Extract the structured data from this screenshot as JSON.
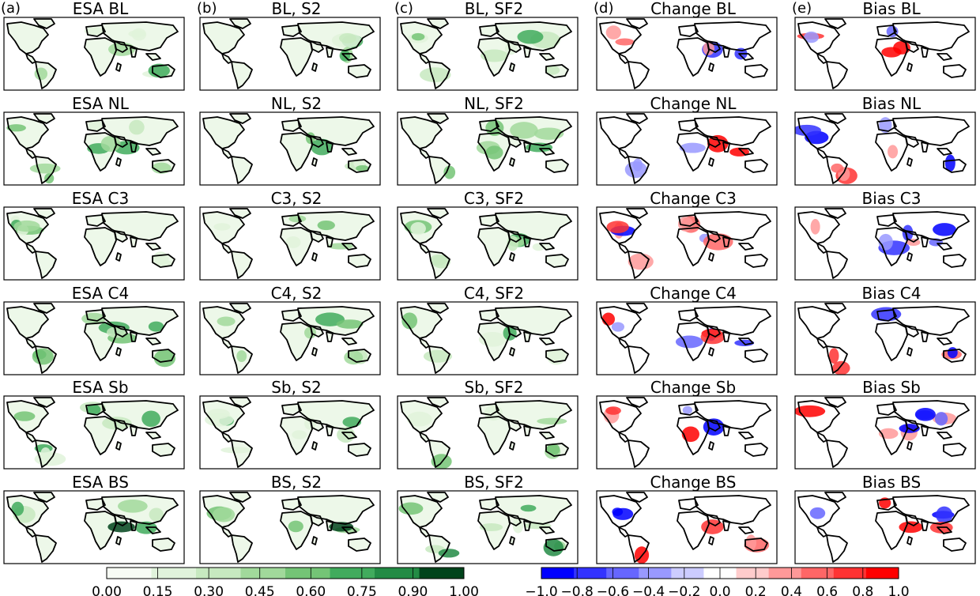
{
  "figure": {
    "columns": [
      {
        "letter": "(a)",
        "titles": [
          "ESA BL",
          "ESA NL",
          "ESA C3",
          "ESA C4",
          "ESA Sb",
          "ESA BS"
        ],
        "scale": "green"
      },
      {
        "letter": "(b)",
        "titles": [
          "BL, S2",
          "NL, S2",
          "C3, S2",
          "C4, S2",
          "Sb, S2",
          "BS, S2"
        ],
        "scale": "green"
      },
      {
        "letter": "(c)",
        "titles": [
          "BL, SF2",
          "NL, SF2",
          "C3, SF2",
          "C4, SF2",
          "Sb, SF2",
          "BS, SF2"
        ],
        "scale": "green"
      },
      {
        "letter": "(d)",
        "titles": [
          "Change BL",
          "Change NL",
          "Change C3",
          "Change C4",
          "Change Sb",
          "Change BS"
        ],
        "scale": "diverging"
      },
      {
        "letter": "(e)",
        "titles": [
          "Bias BL",
          "Bias NL",
          "Bias C3",
          "Bias C4",
          "Bias Sb",
          "Bias BS"
        ],
        "scale": "diverging"
      }
    ],
    "colorbars": {
      "green": {
        "ticks": [
          "0.00",
          "0.15",
          "0.30",
          "0.45",
          "0.60",
          "0.75",
          "0.90",
          "1.00"
        ],
        "colors": [
          "#f7fcf5",
          "#e0f3db",
          "#c7e9c0",
          "#a1d99b",
          "#74c476",
          "#41ab5d",
          "#238b45",
          "#00441b"
        ]
      },
      "diverging": {
        "ticks": [
          "−1.0",
          "−0.8",
          "−0.6",
          "−0.4",
          "−0.2",
          "0.0",
          "0.2",
          "0.4",
          "0.6",
          "0.8",
          "1.0"
        ],
        "colors": [
          "#0000ff",
          "#3333ff",
          "#6666ff",
          "#9999ff",
          "#ccccff",
          "#ffffff",
          "#ffcccc",
          "#ff9999",
          "#ff6666",
          "#ff3333",
          "#ff0000"
        ]
      }
    },
    "colors": {
      "land_base_green": "#edf8e9",
      "land_base_div": "#ffffff",
      "coast": "#000000",
      "frame": "#000000"
    }
  }
}
